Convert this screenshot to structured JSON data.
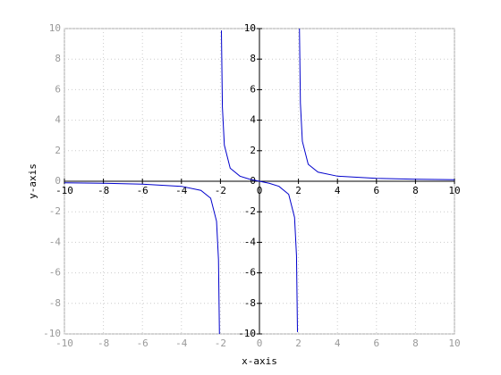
{
  "chart_data": {
    "type": "line",
    "x_label": "x-axis",
    "y_label": "y-axis",
    "x": [
      -10,
      -8,
      -6,
      -4,
      -3,
      -2.5,
      -2.2,
      -2.1,
      -2.05,
      -2,
      -1.95,
      -1.9,
      -1.8,
      -1.5,
      -1,
      -0.5,
      0,
      0.5,
      1,
      1.5,
      1.8,
      1.9,
      1.95,
      2,
      2.05,
      2.1,
      2.2,
      2.5,
      3,
      4,
      6,
      8,
      10
    ],
    "values": [
      -0.104,
      -0.133,
      -0.188,
      -0.333,
      -0.6,
      -1.111,
      -2.619,
      -5.122,
      -10.12,
      null,
      9.873,
      4.872,
      2.368,
      0.857,
      0.333,
      0.133,
      0,
      -0.133,
      -0.333,
      -0.857,
      -2.368,
      -4.872,
      -9.873,
      null,
      10.12,
      5.122,
      2.619,
      1.111,
      0.6,
      0.333,
      0.188,
      0.133,
      0.104
    ],
    "color": "#0000cc",
    "xlim": [
      -10,
      10
    ],
    "ylim": [
      -10,
      10
    ],
    "xticks": [
      -10,
      -8,
      -6,
      -4,
      -2,
      0,
      2,
      4,
      6,
      8,
      10
    ],
    "yticks": [
      -10,
      -8,
      -6,
      -4,
      -2,
      0,
      2,
      4,
      6,
      8,
      10
    ],
    "grid": true
  }
}
